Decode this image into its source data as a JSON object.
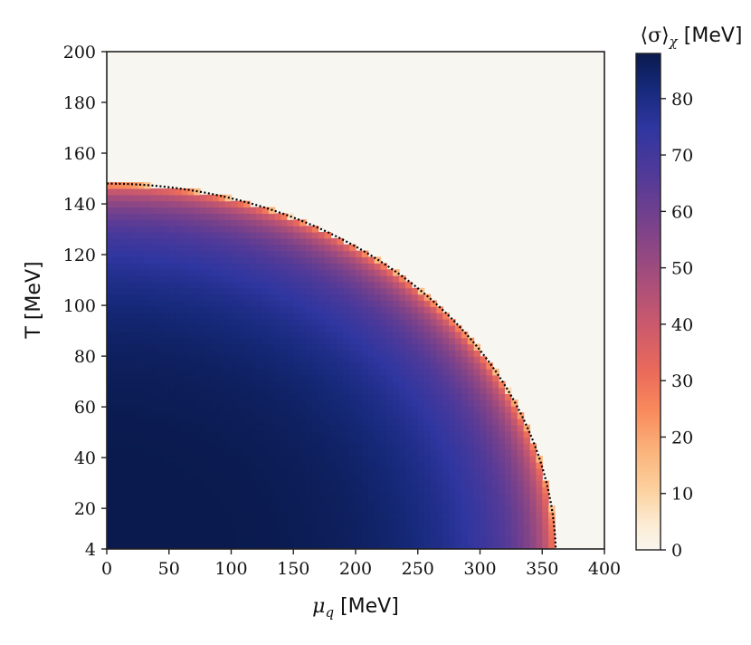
{
  "chart_data": {
    "type": "heatmap",
    "xlabel": {
      "symbol": "μ",
      "subscript": "q",
      "unit": " [MeV]"
    },
    "ylabel": "T [MeV]",
    "xlim": [
      0,
      400
    ],
    "ylim": [
      4,
      200
    ],
    "x_ticks": [
      "0",
      "50",
      "100",
      "150",
      "200",
      "250",
      "300",
      "350",
      "400"
    ],
    "y_ticks": [
      "4",
      "20",
      "40",
      "60",
      "80",
      "100",
      "120",
      "140",
      "160",
      "180",
      "200"
    ],
    "colorbar": {
      "label": {
        "prefix": "⟨σ⟩",
        "subscript": "χ",
        "unit": " [MeV]"
      },
      "range": [
        0,
        88
      ],
      "ticks": [
        "0",
        "10",
        "20",
        "30",
        "40",
        "50",
        "60",
        "70",
        "80"
      ],
      "colormap": "magma_r"
    },
    "boundary": {
      "style": "dotted",
      "color": "#000000",
      "T_at_mu0": 148,
      "mu_at_T4": 361
    },
    "background_color": "#f7f6f1",
    "value_model": "σ ≈ 88 · (1 − r^4)^0.3 inside boundary, 0 outside"
  }
}
